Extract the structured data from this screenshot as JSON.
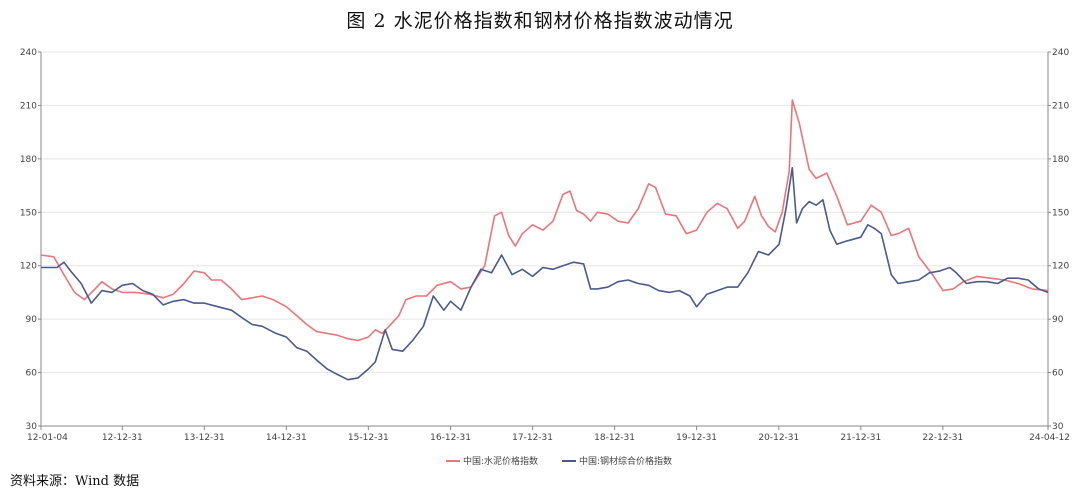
{
  "title": "图 2    水泥价格指数和钢材价格指数波动情况",
  "source": "资料来源：Wind 数据",
  "chart_data": {
    "type": "line",
    "title": "图 2    水泥价格指数和钢材价格指数波动情况",
    "xlabel": "",
    "ylabel": "",
    "ylim": [
      30,
      240
    ],
    "yticks": [
      "30",
      "60",
      "90",
      "120",
      "150",
      "180",
      "210",
      "240"
    ],
    "y2ticks": [
      "30",
      "60",
      "90",
      "120",
      "150",
      "180",
      "210",
      "240"
    ],
    "xticks": [
      "12-01-04",
      "12-12-31",
      "13-12-31",
      "14-12-31",
      "15-12-31",
      "16-12-31",
      "17-12-31",
      "18-12-31",
      "19-12-31",
      "20-12-31",
      "21-12-31",
      "22-12-31",
      "24-04-12"
    ],
    "grid": true,
    "legend_position": "bottom",
    "series": [
      {
        "name": "中国:水泥价格指数",
        "color": "#e8767a",
        "points": [
          [
            "2012-01-04",
            126
          ],
          [
            "2012-03-01",
            125
          ],
          [
            "2012-04-15",
            115
          ],
          [
            "2012-06-01",
            105
          ],
          [
            "2012-07-15",
            101
          ],
          [
            "2012-09-01",
            107
          ],
          [
            "2012-10-01",
            111
          ],
          [
            "2012-11-15",
            107
          ],
          [
            "2012-12-31",
            105
          ],
          [
            "2013-03-01",
            105
          ],
          [
            "2013-05-01",
            104
          ],
          [
            "2013-07-01",
            102
          ],
          [
            "2013-08-15",
            104
          ],
          [
            "2013-10-01",
            110
          ],
          [
            "2013-11-15",
            117
          ],
          [
            "2013-12-31",
            116
          ],
          [
            "2014-02-01",
            112
          ],
          [
            "2014-03-15",
            112
          ],
          [
            "2014-05-01",
            107
          ],
          [
            "2014-06-15",
            101
          ],
          [
            "2014-08-01",
            102
          ],
          [
            "2014-09-15",
            103
          ],
          [
            "2014-11-01",
            101
          ],
          [
            "2014-12-31",
            97
          ],
          [
            "2015-02-15",
            92
          ],
          [
            "2015-04-01",
            87
          ],
          [
            "2015-05-15",
            83
          ],
          [
            "2015-07-01",
            82
          ],
          [
            "2015-08-15",
            81
          ],
          [
            "2015-10-01",
            79
          ],
          [
            "2015-11-15",
            78
          ],
          [
            "2015-12-31",
            80
          ],
          [
            "2016-02-01",
            84
          ],
          [
            "2016-03-01",
            82
          ],
          [
            "2016-04-01",
            86
          ],
          [
            "2016-05-15",
            92
          ],
          [
            "2016-06-15",
            101
          ],
          [
            "2016-08-01",
            103
          ],
          [
            "2016-09-15",
            103
          ],
          [
            "2016-11-01",
            109
          ],
          [
            "2016-12-31",
            111
          ],
          [
            "2017-02-15",
            107
          ],
          [
            "2017-04-01",
            108
          ],
          [
            "2017-06-01",
            120
          ],
          [
            "2017-07-15",
            148
          ],
          [
            "2017-08-15",
            150
          ],
          [
            "2017-09-15",
            137
          ],
          [
            "2017-10-15",
            131
          ],
          [
            "2017-11-15",
            138
          ],
          [
            "2017-12-31",
            143
          ],
          [
            "2018-02-15",
            140
          ],
          [
            "2018-04-01",
            145
          ],
          [
            "2018-05-15",
            160
          ],
          [
            "2018-06-15",
            162
          ],
          [
            "2018-07-15",
            151
          ],
          [
            "2018-08-15",
            149
          ],
          [
            "2018-09-15",
            145
          ],
          [
            "2018-10-15",
            150
          ],
          [
            "2018-12-01",
            149
          ],
          [
            "2019-01-15",
            145
          ],
          [
            "2019-03-01",
            144
          ],
          [
            "2019-04-15",
            152
          ],
          [
            "2019-06-01",
            166
          ],
          [
            "2019-07-01",
            164
          ],
          [
            "2019-08-15",
            149
          ],
          [
            "2019-10-01",
            148
          ],
          [
            "2019-11-15",
            138
          ],
          [
            "2019-12-31",
            140
          ],
          [
            "2020-02-15",
            150
          ],
          [
            "2020-04-01",
            155
          ],
          [
            "2020-05-15",
            152
          ],
          [
            "2020-07-01",
            141
          ],
          [
            "2020-08-01",
            145
          ],
          [
            "2020-09-15",
            159
          ],
          [
            "2020-10-15",
            148
          ],
          [
            "2020-11-15",
            142
          ],
          [
            "2020-12-15",
            139
          ],
          [
            "2021-01-15",
            150
          ],
          [
            "2021-02-15",
            173
          ],
          [
            "2021-03-01",
            213
          ],
          [
            "2021-04-01",
            200
          ],
          [
            "2021-05-15",
            174
          ],
          [
            "2021-06-15",
            169
          ],
          [
            "2021-08-01",
            172
          ],
          [
            "2021-09-15",
            159
          ],
          [
            "2021-11-01",
            143
          ],
          [
            "2021-12-31",
            145
          ],
          [
            "2022-02-15",
            154
          ],
          [
            "2022-04-01",
            150
          ],
          [
            "2022-05-15",
            137
          ],
          [
            "2022-06-15",
            138
          ],
          [
            "2022-08-01",
            141
          ],
          [
            "2022-09-15",
            125
          ],
          [
            "2022-11-15",
            115
          ],
          [
            "2022-12-31",
            106
          ],
          [
            "2023-02-15",
            107
          ],
          [
            "2023-04-01",
            111
          ],
          [
            "2023-06-01",
            114
          ],
          [
            "2023-08-01",
            113
          ],
          [
            "2023-10-01",
            112
          ],
          [
            "2023-12-01",
            110
          ],
          [
            "2024-02-01",
            107
          ],
          [
            "2024-04-12",
            106
          ]
        ]
      },
      {
        "name": "中国:钢材综合价格指数",
        "color": "#4a5a8c",
        "points": [
          [
            "2012-01-04",
            119
          ],
          [
            "2012-03-15",
            119
          ],
          [
            "2012-04-15",
            122
          ],
          [
            "2012-05-15",
            117
          ],
          [
            "2012-07-01",
            110
          ],
          [
            "2012-08-15",
            99
          ],
          [
            "2012-10-01",
            106
          ],
          [
            "2012-11-15",
            105
          ],
          [
            "2012-12-31",
            109
          ],
          [
            "2013-02-15",
            110
          ],
          [
            "2013-04-01",
            106
          ],
          [
            "2013-05-15",
            104
          ],
          [
            "2013-07-01",
            98
          ],
          [
            "2013-08-15",
            100
          ],
          [
            "2013-10-01",
            101
          ],
          [
            "2013-11-15",
            99
          ],
          [
            "2013-12-31",
            99
          ],
          [
            "2014-03-01",
            97
          ],
          [
            "2014-05-01",
            95
          ],
          [
            "2014-06-15",
            91
          ],
          [
            "2014-08-01",
            87
          ],
          [
            "2014-09-15",
            86
          ],
          [
            "2014-11-15",
            82
          ],
          [
            "2014-12-31",
            80
          ],
          [
            "2015-02-15",
            74
          ],
          [
            "2015-04-01",
            72
          ],
          [
            "2015-05-15",
            67
          ],
          [
            "2015-07-01",
            62
          ],
          [
            "2015-08-15",
            59
          ],
          [
            "2015-10-01",
            56
          ],
          [
            "2015-11-15",
            57
          ],
          [
            "2015-12-31",
            62
          ],
          [
            "2016-01-31",
            66
          ],
          [
            "2016-03-15",
            84
          ],
          [
            "2016-04-15",
            73
          ],
          [
            "2016-06-01",
            72
          ],
          [
            "2016-07-15",
            78
          ],
          [
            "2016-09-01",
            86
          ],
          [
            "2016-10-15",
            103
          ],
          [
            "2016-12-01",
            95
          ],
          [
            "2016-12-31",
            100
          ],
          [
            "2017-02-15",
            95
          ],
          [
            "2017-04-01",
            108
          ],
          [
            "2017-05-15",
            118
          ],
          [
            "2017-07-01",
            116
          ],
          [
            "2017-08-15",
            126
          ],
          [
            "2017-10-01",
            115
          ],
          [
            "2017-11-15",
            118
          ],
          [
            "2017-12-31",
            114
          ],
          [
            "2018-02-15",
            119
          ],
          [
            "2018-04-01",
            118
          ],
          [
            "2018-05-15",
            120
          ],
          [
            "2018-07-01",
            122
          ],
          [
            "2018-08-15",
            121
          ],
          [
            "2018-09-15",
            107
          ],
          [
            "2018-10-15",
            107
          ],
          [
            "2018-12-01",
            108
          ],
          [
            "2019-01-15",
            111
          ],
          [
            "2019-03-01",
            112
          ],
          [
            "2019-04-15",
            110
          ],
          [
            "2019-06-01",
            109
          ],
          [
            "2019-07-15",
            106
          ],
          [
            "2019-09-01",
            105
          ],
          [
            "2019-10-15",
            106
          ],
          [
            "2019-12-01",
            103
          ],
          [
            "2019-12-31",
            97
          ],
          [
            "2020-02-15",
            104
          ],
          [
            "2020-04-01",
            106
          ],
          [
            "2020-05-15",
            108
          ],
          [
            "2020-07-01",
            108
          ],
          [
            "2020-08-15",
            116
          ],
          [
            "2020-10-01",
            128
          ],
          [
            "2020-11-15",
            126
          ],
          [
            "2021-01-01",
            132
          ],
          [
            "2021-02-01",
            152
          ],
          [
            "2021-03-01",
            175
          ],
          [
            "2021-03-20",
            144
          ],
          [
            "2021-04-15",
            152
          ],
          [
            "2021-05-15",
            156
          ],
          [
            "2021-06-15",
            154
          ],
          [
            "2021-07-15",
            157
          ],
          [
            "2021-08-15",
            140
          ],
          [
            "2021-09-15",
            132
          ],
          [
            "2021-11-01",
            134
          ],
          [
            "2021-12-31",
            136
          ],
          [
            "2022-01-31",
            143
          ],
          [
            "2022-03-01",
            141
          ],
          [
            "2022-04-01",
            138
          ],
          [
            "2022-05-15",
            115
          ],
          [
            "2022-06-15",
            110
          ],
          [
            "2022-08-01",
            111
          ],
          [
            "2022-09-15",
            112
          ],
          [
            "2022-11-01",
            116
          ],
          [
            "2022-12-15",
            117
          ],
          [
            "2023-01-31",
            119
          ],
          [
            "2023-03-01",
            116
          ],
          [
            "2023-04-15",
            110
          ],
          [
            "2023-06-01",
            111
          ],
          [
            "2023-07-15",
            111
          ],
          [
            "2023-09-01",
            110
          ],
          [
            "2023-10-15",
            113
          ],
          [
            "2023-12-01",
            113
          ],
          [
            "2024-01-15",
            112
          ],
          [
            "2024-03-01",
            107
          ],
          [
            "2024-04-12",
            105
          ]
        ]
      }
    ]
  }
}
